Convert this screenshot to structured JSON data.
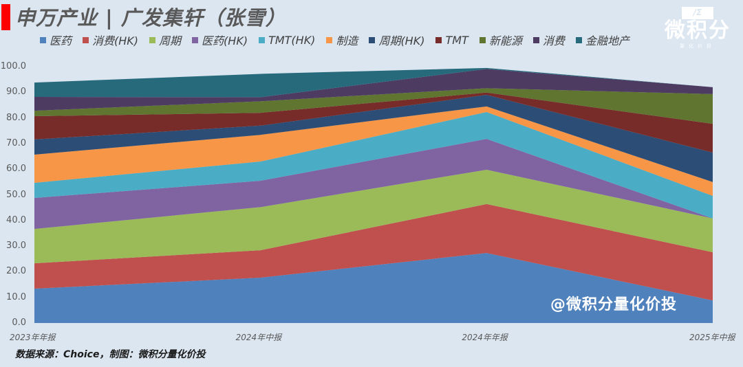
{
  "header": {
    "title": "申万产业 | 广发集轩（张雪）"
  },
  "logo": {
    "box_text": "/Σ",
    "main_text": "微积分",
    "sub_text": "量化价投"
  },
  "legend": [
    {
      "label": "医药",
      "color": "#4f81bd"
    },
    {
      "label": "消费(HK)",
      "color": "#c0504d"
    },
    {
      "label": "周期",
      "color": "#9bbb59"
    },
    {
      "label": "医药(HK)",
      "color": "#8064a2"
    },
    {
      "label": "TMT(HK)",
      "color": "#4bacc6"
    },
    {
      "label": "制造",
      "color": "#f79646"
    },
    {
      "label": "周期(HK)",
      "color": "#2c4d75"
    },
    {
      "label": "TMT",
      "color": "#772c2a"
    },
    {
      "label": "新能源",
      "color": "#5f7530"
    },
    {
      "label": "消费",
      "color": "#4d3b62"
    },
    {
      "label": "金融地产",
      "color": "#276a7c"
    }
  ],
  "watermark": "@微积分量化价投",
  "source": "数据来源：Choice，制图：微积分量化价投",
  "chart_data": {
    "type": "area",
    "stacked": true,
    "title": "申万产业 | 广发集轩（张雪）",
    "xlabel": "",
    "ylabel": "",
    "ylim": [
      0,
      100
    ],
    "yticks": [
      "0.0",
      "10.0",
      "20.0",
      "30.0",
      "40.0",
      "50.0",
      "60.0",
      "70.0",
      "80.0",
      "90.0",
      "100.0"
    ],
    "grid": false,
    "legend_position": "top",
    "categories": [
      "2023年年报",
      "2024年中报",
      "2024年年报",
      "2025年中报"
    ],
    "series": [
      {
        "name": "医药",
        "color": "#4f81bd",
        "values": [
          13.4,
          17.7,
          27.3,
          8.8
        ]
      },
      {
        "name": "消费(HK)",
        "color": "#c0504d",
        "values": [
          9.9,
          10.7,
          19.1,
          18.8
        ]
      },
      {
        "name": "周期",
        "color": "#9bbb59",
        "values": [
          13.4,
          16.8,
          13.4,
          13.2
        ]
      },
      {
        "name": "医药(HK)",
        "color": "#8064a2",
        "values": [
          12.1,
          10.3,
          12.0,
          0.0
        ]
      },
      {
        "name": "TMT(HK)",
        "color": "#4bacc6",
        "values": [
          5.9,
          7.5,
          10.5,
          8.8
        ]
      },
      {
        "name": "制造",
        "color": "#f79646",
        "values": [
          11.0,
          10.4,
          2.2,
          5.4
        ]
      },
      {
        "name": "周期(HK)",
        "color": "#2c4d75",
        "values": [
          5.9,
          3.6,
          4.5,
          11.5
        ]
      },
      {
        "name": "TMT",
        "color": "#772c2a",
        "values": [
          9.1,
          5.0,
          0.9,
          11.2
        ]
      },
      {
        "name": "新能源",
        "color": "#5f7530",
        "values": [
          2.1,
          4.5,
          1.7,
          11.6
        ]
      },
      {
        "name": "消费",
        "color": "#4d3b62",
        "values": [
          5.4,
          1.6,
          7.5,
          2.7
        ]
      },
      {
        "name": "金融地产",
        "color": "#276a7c",
        "values": [
          5.6,
          9.1,
          0.4,
          0.0
        ]
      }
    ]
  }
}
